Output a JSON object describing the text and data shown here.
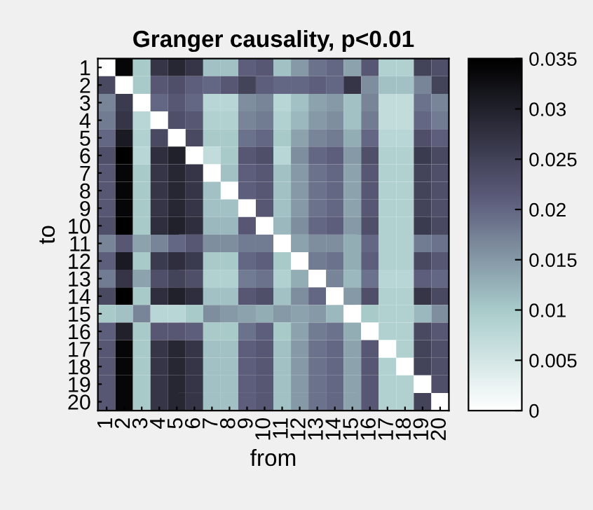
{
  "chart_data": {
    "type": "heatmap",
    "title": "Granger causality, p<0.01",
    "xlabel": "from",
    "ylabel": "to",
    "categories": [
      "1",
      "2",
      "3",
      "4",
      "5",
      "6",
      "7",
      "8",
      "9",
      "10",
      "11",
      "12",
      "13",
      "14",
      "15",
      "16",
      "17",
      "18",
      "19",
      "20"
    ],
    "y_categories": [
      "1",
      "2",
      "3",
      "4",
      "5",
      "6",
      "7",
      "8",
      "9",
      "10",
      "11",
      "12",
      "13",
      "14",
      "15",
      "16",
      "17",
      "18",
      "19",
      "20"
    ],
    "cells": [
      [
        0,
        0.034,
        0.01,
        0.027,
        0.029,
        0.027,
        0.011,
        0.011,
        0.021,
        0.022,
        0.011,
        0.015,
        0.019,
        0.02,
        0.014,
        0.022,
        0.009,
        0.009,
        0.025,
        0.023
      ],
      [
        0.024,
        0,
        0.01,
        0.022,
        0.023,
        0.021,
        0.02,
        0.022,
        0.025,
        0.021,
        0.02,
        0.02,
        0.021,
        0.02,
        0.027,
        0.016,
        0.011,
        0.011,
        0.017,
        0.025
      ],
      [
        0.017,
        0.026,
        0,
        0.02,
        0.022,
        0.02,
        0.008,
        0.008,
        0.016,
        0.017,
        0.008,
        0.011,
        0.014,
        0.015,
        0.011,
        0.017,
        0.007,
        0.007,
        0.019,
        0.017
      ],
      [
        0.018,
        0.027,
        0.008,
        0,
        0.023,
        0.022,
        0.009,
        0.009,
        0.017,
        0.018,
        0.009,
        0.012,
        0.015,
        0.016,
        0.011,
        0.018,
        0.007,
        0.007,
        0.02,
        0.018
      ],
      [
        0.02,
        0.031,
        0.009,
        0.024,
        0,
        0.024,
        0.01,
        0.01,
        0.019,
        0.02,
        0.01,
        0.014,
        0.017,
        0.018,
        0.013,
        0.02,
        0.008,
        0.008,
        0.023,
        0.021
      ],
      [
        0.023,
        0.035,
        0.008,
        0.028,
        0.03,
        0,
        0.007,
        0.01,
        0.022,
        0.023,
        0.008,
        0.016,
        0.02,
        0.021,
        0.015,
        0.023,
        0.009,
        0.009,
        0.026,
        0.024
      ],
      [
        0.022,
        0.034,
        0.01,
        0.027,
        0.029,
        0.027,
        0,
        0.011,
        0.021,
        0.022,
        0.011,
        0.015,
        0.019,
        0.02,
        0.014,
        0.022,
        0.009,
        0.009,
        0.025,
        0.023
      ],
      [
        0.022,
        0.034,
        0.01,
        0.027,
        0.029,
        0.027,
        0.011,
        0,
        0.021,
        0.022,
        0.011,
        0.015,
        0.019,
        0.02,
        0.014,
        0.022,
        0.009,
        0.009,
        0.025,
        0.023
      ],
      [
        0.022,
        0.034,
        0.01,
        0.027,
        0.029,
        0.027,
        0.011,
        0.011,
        0,
        0.022,
        0.011,
        0.015,
        0.019,
        0.02,
        0.014,
        0.022,
        0.009,
        0.009,
        0.025,
        0.023
      ],
      [
        0.023,
        0.035,
        0.01,
        0.028,
        0.03,
        0.028,
        0.012,
        0.012,
        0.022,
        0,
        0.012,
        0.016,
        0.02,
        0.021,
        0.015,
        0.023,
        0.009,
        0.009,
        0.026,
        0.024
      ],
      [
        0.017,
        0.022,
        0.014,
        0.017,
        0.02,
        0.022,
        0.016,
        0.016,
        0.018,
        0.018,
        0,
        0.014,
        0.016,
        0.016,
        0.013,
        0.02,
        0.009,
        0.009,
        0.018,
        0.019
      ],
      [
        0.021,
        0.031,
        0.01,
        0.026,
        0.028,
        0.026,
        0.01,
        0.01,
        0.02,
        0.021,
        0.01,
        0,
        0.018,
        0.019,
        0.013,
        0.021,
        0.009,
        0.009,
        0.024,
        0.022
      ],
      [
        0.018,
        0.027,
        0.014,
        0.023,
        0.025,
        0.023,
        0.009,
        0.009,
        0.018,
        0.019,
        0.009,
        0.013,
        0,
        0.017,
        0.012,
        0.019,
        0.008,
        0.008,
        0.021,
        0.02
      ],
      [
        0.024,
        0.035,
        0.01,
        0.028,
        0.03,
        0.028,
        0.011,
        0.011,
        0.022,
        0.023,
        0.011,
        0.016,
        0.02,
        0,
        0.015,
        0.023,
        0.009,
        0.009,
        0.027,
        0.024
      ],
      [
        0.01,
        0.011,
        0.017,
        0.008,
        0.008,
        0.01,
        0.016,
        0.015,
        0.014,
        0.013,
        0.015,
        0.014,
        0.015,
        0.012,
        0,
        0.01,
        0.009,
        0.009,
        0.012,
        0.016
      ],
      [
        0.021,
        0.03,
        0.01,
        0.022,
        0.022,
        0.021,
        0.01,
        0.01,
        0.019,
        0.021,
        0.01,
        0.014,
        0.018,
        0.019,
        0.013,
        0,
        0.009,
        0.009,
        0.024,
        0.022
      ],
      [
        0.022,
        0.034,
        0.01,
        0.027,
        0.029,
        0.027,
        0.011,
        0.011,
        0.021,
        0.022,
        0.011,
        0.015,
        0.019,
        0.02,
        0.014,
        0.022,
        0,
        0.009,
        0.025,
        0.023
      ],
      [
        0.022,
        0.034,
        0.01,
        0.027,
        0.029,
        0.027,
        0.011,
        0.011,
        0.021,
        0.022,
        0.011,
        0.015,
        0.019,
        0.02,
        0.014,
        0.022,
        0.009,
        0,
        0.025,
        0.023
      ],
      [
        0.022,
        0.034,
        0.01,
        0.027,
        0.029,
        0.027,
        0.011,
        0.011,
        0.021,
        0.022,
        0.011,
        0.015,
        0.019,
        0.02,
        0.014,
        0.022,
        0.009,
        0.009,
        0,
        0.023
      ],
      [
        0.022,
        0.034,
        0.01,
        0.027,
        0.029,
        0.027,
        0.011,
        0.011,
        0.021,
        0.022,
        0.011,
        0.015,
        0.019,
        0.02,
        0.014,
        0.022,
        0.009,
        0.009,
        0.025,
        0
      ]
    ],
    "clim": [
      0,
      0.035
    ],
    "cticks": [
      0,
      0.005,
      0.01,
      0.015,
      0.02,
      0.025,
      0.03,
      0.035
    ]
  }
}
